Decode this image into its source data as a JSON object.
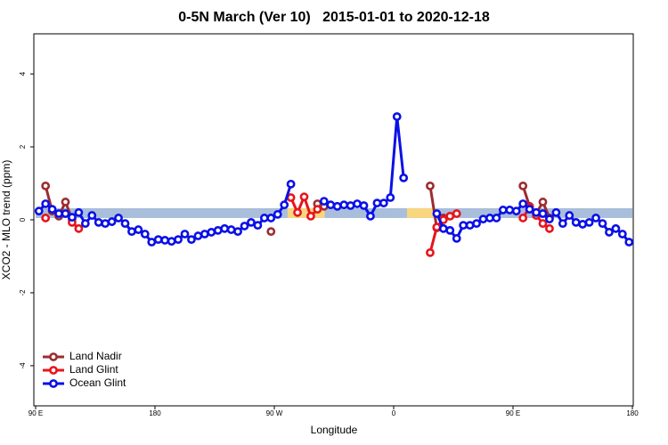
{
  "chart_data": {
    "type": "line",
    "title": "0-5N March (Ver 10)   2015-01-01 to 2020-12-18",
    "x_label": "Longitude",
    "y_label": "XCO2 - MLO trend (ppm)",
    "xlim": [
      -270,
      180
    ],
    "xticks": [
      {
        "value": -270,
        "label": "90 E"
      },
      {
        "value": -180,
        "label": "180"
      },
      {
        "value": -90,
        "label": "90 W"
      },
      0,
      {
        "value": 90,
        "label": "90 E"
      },
      180
    ],
    "ylim": [
      -5.1,
      5.1
    ],
    "yticks": [
      -4,
      -2,
      0,
      2,
      4
    ],
    "legend": "bottom-left",
    "reference_band": {
      "range": [
        0.05,
        0.32
      ],
      "color": "#a9bedb",
      "highlight_color": "#f7d67f",
      "highlights": [
        [
          -80,
          -52
        ],
        [
          10,
          32
        ]
      ]
    },
    "series": [
      {
        "name": "Land Nadir",
        "color": "#9b2d30",
        "x": [
          -262.5,
          -257.5,
          -252.5,
          -247.5,
          -242.5,
          -237.5,
          -92.5,
          -87.5,
          -57.5,
          -52.5,
          -47.5,
          27.5,
          32.5,
          37.5,
          42.5,
          97.5,
          102.5,
          107.5,
          112.5,
          117.5
        ],
        "values": [
          0.93,
          0.24,
          0.1,
          0.49,
          0.02,
          null,
          -0.32,
          null,
          0.44,
          0.37,
          null,
          0.93,
          -0.22,
          0.05,
          null,
          0.93,
          0.37,
          0.17,
          0.49,
          0.05
        ]
      },
      {
        "name": "Land Glint",
        "color": "#e8141c",
        "x": [
          -262.5,
          -257.5,
          -242.5,
          -237.5,
          -232.5,
          -77.5,
          -72.5,
          -67.5,
          -62.5,
          -57.5,
          -52.5,
          27.5,
          32.5,
          37.5,
          42.5,
          47.5,
          52.5,
          97.5,
          102.5,
          107.5,
          112.5,
          117.5
        ],
        "values": [
          0.05,
          null,
          -0.07,
          -0.24,
          null,
          0.61,
          0.2,
          0.63,
          0.1,
          0.29,
          null,
          -0.9,
          -0.2,
          0.0,
          0.1,
          0.17,
          null,
          0.05,
          0.35,
          0.12,
          -0.1,
          -0.24
        ]
      },
      {
        "name": "Ocean Glint",
        "color": "#0a10e6",
        "x": [
          -267.5,
          -262.5,
          -257.5,
          -252.5,
          -247.5,
          -242.5,
          -237.5,
          -232.5,
          -227.5,
          -222.5,
          -217.5,
          -212.5,
          -207.5,
          -202.5,
          -197.5,
          -192.5,
          -187.5,
          -182.5,
          -177.5,
          -172.5,
          -167.5,
          -162.5,
          -157.5,
          -152.5,
          -147.5,
          -142.5,
          -137.5,
          -132.5,
          -127.5,
          -122.5,
          -117.5,
          -112.5,
          -107.5,
          -102.5,
          -97.5,
          -92.5,
          -87.5,
          -82.5,
          -77.5,
          -72.5,
          -52.5,
          -47.5,
          -42.5,
          -37.5,
          -32.5,
          -27.5,
          -22.5,
          -17.5,
          -12.5,
          -7.5,
          -2.5,
          2.5,
          7.5,
          12.5,
          32.5,
          37.5,
          42.5,
          47.5,
          52.5,
          57.5,
          62.5,
          67.5,
          72.5,
          77.5,
          82.5,
          87.5,
          92.5,
          97.5,
          102.5,
          107.5,
          112.5,
          117.5,
          122.5,
          127.5,
          132.5,
          137.5,
          142.5,
          147.5,
          152.5,
          157.5,
          162.5,
          167.5,
          172.5,
          177.5
        ],
        "values": [
          0.24,
          0.44,
          0.29,
          0.17,
          0.17,
          0.07,
          0.2,
          -0.1,
          0.12,
          -0.07,
          -0.1,
          -0.05,
          0.05,
          -0.1,
          -0.32,
          -0.27,
          -0.39,
          -0.61,
          -0.54,
          -0.56,
          -0.59,
          -0.54,
          -0.39,
          -0.54,
          -0.44,
          -0.39,
          -0.34,
          -0.29,
          -0.24,
          -0.27,
          -0.32,
          -0.17,
          -0.07,
          -0.15,
          0.05,
          0.05,
          0.15,
          0.41,
          0.98,
          null,
          0.51,
          0.41,
          0.37,
          0.41,
          0.39,
          0.44,
          0.39,
          0.1,
          0.46,
          0.46,
          0.61,
          2.83,
          1.15,
          null,
          0.17,
          -0.24,
          -0.29,
          -0.51,
          -0.15,
          -0.15,
          -0.1,
          0.02,
          0.05,
          0.05,
          0.27,
          0.27,
          0.24,
          0.44,
          0.29,
          0.2,
          0.17,
          0.02,
          0.2,
          -0.1,
          0.12,
          -0.07,
          -0.12,
          -0.07,
          0.05,
          -0.1,
          -0.34,
          -0.24,
          -0.39,
          -0.61
        ]
      }
    ]
  }
}
